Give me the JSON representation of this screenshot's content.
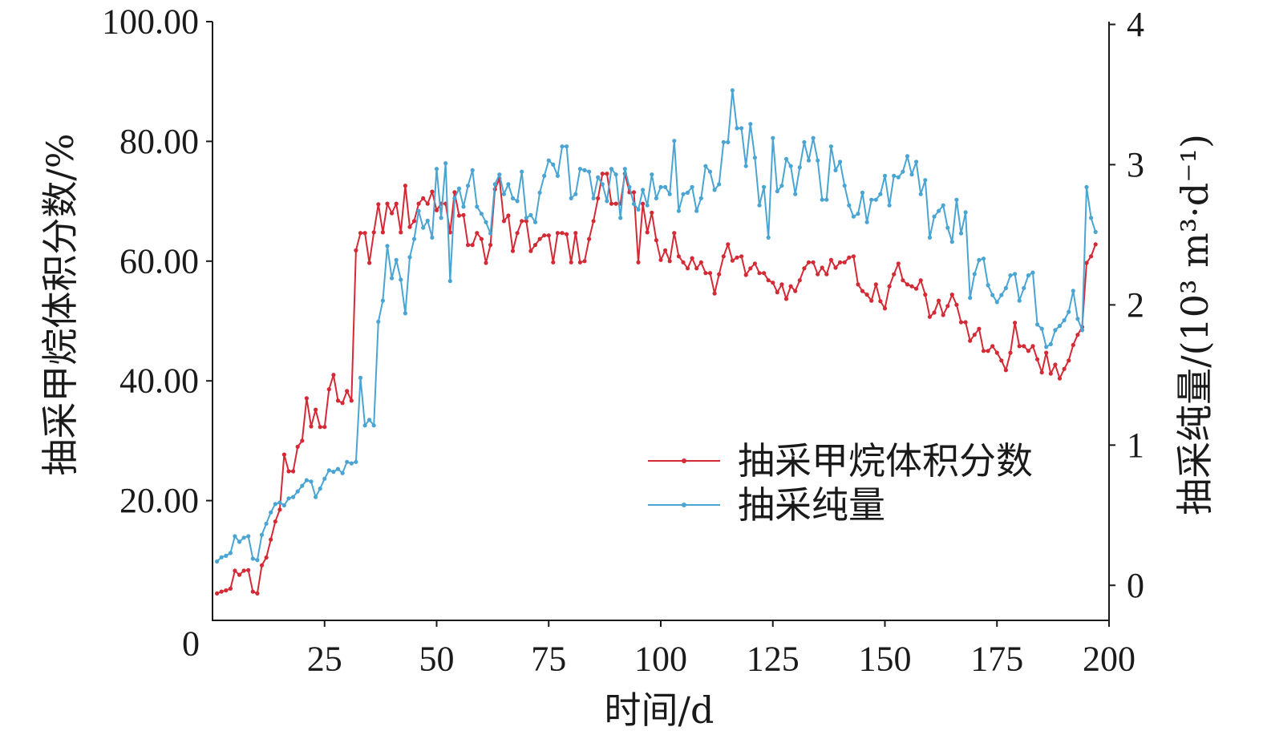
{
  "chart_data": {
    "type": "line",
    "xlabel": "时间/d",
    "ylabel": "抽采甲烷体积分数/%",
    "ylabel_right": "抽采纯量/(10³ m³·d⁻¹)",
    "xlim": [
      0,
      200
    ],
    "ylim": [
      0,
      100
    ],
    "ylim_right": [
      -0.25,
      4.02
    ],
    "x_ticks": [
      25,
      50,
      75,
      100,
      125,
      150,
      175,
      200
    ],
    "x_tick_labels": [
      "25",
      "50",
      "75",
      "100",
      "125",
      "150",
      "175",
      "200"
    ],
    "y_ticks": [
      20,
      40,
      60,
      80,
      100
    ],
    "y_tick_labels": [
      "20.00",
      "40.00",
      "60.00",
      "80.00",
      "100.00"
    ],
    "y_right_ticks": [
      0,
      1,
      2,
      3,
      4
    ],
    "y_right_tick_labels": [
      "0",
      "1",
      "2",
      "3",
      "4"
    ],
    "origin_label": "0",
    "grid": false,
    "legend": "lower-right",
    "x": [
      1,
      2,
      3,
      4,
      5,
      6,
      7,
      8,
      9,
      10,
      11,
      12,
      13,
      14,
      15,
      16,
      17,
      18,
      19,
      20,
      21,
      22,
      23,
      24,
      25,
      26,
      27,
      28,
      29,
      30,
      31,
      32,
      33,
      34,
      35,
      36,
      37,
      38,
      39,
      40,
      41,
      42,
      43,
      44,
      45,
      46,
      47,
      48,
      49,
      50,
      51,
      52,
      53,
      54,
      55,
      56,
      57,
      58,
      59,
      60,
      61,
      62,
      63,
      64,
      65,
      66,
      67,
      68,
      69,
      70,
      71,
      72,
      73,
      74,
      75,
      76,
      77,
      78,
      79,
      80,
      81,
      82,
      83,
      84,
      85,
      86,
      87,
      88,
      89,
      90,
      91,
      92,
      93,
      94,
      95,
      96,
      97,
      98,
      99,
      100,
      101,
      102,
      103,
      104,
      105,
      106,
      107,
      108,
      109,
      110,
      111,
      112,
      113,
      114,
      115,
      116,
      117,
      118,
      119,
      120,
      121,
      122,
      123,
      124,
      125,
      126,
      127,
      128,
      129,
      130,
      131,
      132,
      133,
      134,
      135,
      136,
      137,
      138,
      139,
      140,
      141,
      142,
      143,
      144,
      145,
      146,
      147,
      148,
      149,
      150,
      151,
      152,
      153,
      154,
      155,
      156,
      157,
      158,
      159,
      160,
      161,
      162,
      163,
      164,
      165,
      166,
      167,
      168,
      169,
      170,
      171,
      172,
      173,
      174,
      175,
      176,
      177,
      178,
      179,
      180,
      181,
      182,
      183,
      184,
      185,
      186,
      187,
      188,
      189,
      190,
      191,
      192,
      193,
      194,
      195,
      196,
      197
    ],
    "series": [
      {
        "name": "抽采甲烷体积分数",
        "axis": "left",
        "color": "#d42a36",
        "values": [
          4.5,
          4.8,
          5.0,
          5.3,
          8.3,
          7.6,
          8.3,
          8.4,
          4.8,
          4.5,
          9.2,
          10.5,
          13.5,
          16.5,
          18.5,
          27.7,
          24.9,
          24.9,
          29.0,
          30.0,
          37.1,
          32.4,
          35.2,
          32.3,
          32.3,
          38.6,
          41.0,
          36.7,
          36.3,
          38.3,
          36.7,
          61.8,
          64.7,
          64.7,
          59.7,
          64.8,
          69.5,
          64.8,
          69.6,
          68.0,
          69.6,
          64.8,
          72.6,
          65.7,
          66.7,
          69.6,
          70.5,
          69.6,
          71.6,
          68.5,
          69.6,
          69.6,
          64.8,
          71.5,
          67.6,
          67.7,
          62.7,
          62.7,
          64.7,
          63.7,
          59.7,
          62.7,
          72.0,
          73.8,
          66.7,
          67.6,
          61.7,
          64.7,
          66.7,
          66.7,
          61.7,
          62.7,
          63.7,
          64.3,
          64.3,
          59.8,
          64.7,
          64.7,
          64.5,
          59.8,
          64.7,
          59.8,
          60.0,
          63.7,
          66.7,
          70.5,
          74.6,
          74.6,
          69.6,
          69.6,
          69.6,
          74.6,
          71.5,
          71.5,
          59.8,
          69.6,
          64.8,
          68.1,
          63.5,
          60.2,
          61.8,
          60.0,
          64.7,
          60.8,
          59.8,
          58.8,
          60.5,
          58.8,
          59.8,
          58.0,
          58.0,
          54.6,
          57.8,
          60.8,
          62.8,
          60.1,
          60.6,
          60.8,
          57.7,
          58.8,
          59.6,
          58.0,
          58.0,
          56.8,
          56.4,
          54.8,
          56.1,
          53.7,
          55.8,
          55.0,
          56.8,
          58.8,
          59.8,
          59.8,
          57.8,
          58.9,
          57.8,
          60.2,
          58.9,
          59.8,
          59.8,
          60.6,
          60.8,
          56.1,
          55.0,
          54.4,
          53.4,
          56.1,
          53.3,
          52.1,
          55.8,
          57.8,
          59.6,
          56.8,
          56.1,
          55.8,
          55.4,
          56.8,
          54.4,
          50.7,
          51.4,
          53.4,
          51.0,
          52.5,
          54.4,
          52.7,
          49.8,
          49.8,
          46.7,
          47.7,
          48.7,
          45.0,
          45.0,
          45.8,
          44.7,
          43.4,
          41.8,
          44.7,
          49.7,
          45.8,
          45.8,
          45.0,
          45.8,
          43.6,
          41.4,
          44.7,
          41.2,
          42.7,
          40.4,
          42.0,
          43.4,
          46.0,
          47.7,
          49.0,
          59.7,
          60.8,
          62.8
        ]
      },
      {
        "name": "抽采纯量",
        "axis": "right",
        "color": "#4aa5d2",
        "values": [
          0.17,
          0.2,
          0.21,
          0.23,
          0.35,
          0.31,
          0.34,
          0.35,
          0.19,
          0.18,
          0.36,
          0.44,
          0.52,
          0.58,
          0.59,
          0.57,
          0.62,
          0.63,
          0.67,
          0.71,
          0.75,
          0.74,
          0.63,
          0.69,
          0.76,
          0.82,
          0.81,
          0.83,
          0.8,
          0.88,
          0.87,
          0.88,
          1.48,
          1.14,
          1.18,
          1.14,
          1.88,
          2.03,
          2.42,
          2.19,
          2.32,
          2.18,
          1.94,
          2.34,
          2.47,
          2.67,
          2.55,
          2.6,
          2.48,
          2.97,
          2.62,
          3.01,
          2.17,
          2.76,
          2.83,
          2.7,
          2.85,
          2.96,
          2.7,
          2.65,
          2.59,
          2.51,
          2.86,
          2.93,
          2.79,
          2.86,
          2.76,
          2.74,
          2.95,
          2.62,
          2.64,
          2.59,
          2.8,
          2.92,
          3.03,
          3.0,
          2.92,
          3.13,
          3.13,
          2.76,
          2.79,
          2.97,
          2.96,
          2.95,
          2.76,
          2.91,
          2.86,
          2.74,
          2.97,
          2.93,
          2.62,
          2.97,
          2.84,
          2.72,
          2.68,
          2.82,
          2.71,
          2.93,
          2.76,
          2.84,
          2.84,
          2.79,
          3.17,
          2.67,
          2.79,
          2.8,
          2.84,
          2.67,
          2.76,
          2.99,
          2.95,
          2.82,
          2.86,
          3.16,
          3.16,
          3.53,
          3.26,
          3.26,
          2.99,
          3.29,
          3.05,
          2.71,
          2.84,
          2.48,
          3.19,
          2.81,
          2.85,
          3.04,
          2.99,
          2.79,
          2.98,
          3.16,
          3.03,
          3.19,
          3.03,
          2.75,
          2.75,
          3.13,
          2.96,
          3.02,
          2.85,
          2.71,
          2.63,
          2.65,
          2.8,
          2.59,
          2.75,
          2.75,
          2.79,
          2.92,
          2.71,
          2.92,
          2.91,
          2.95,
          3.06,
          2.93,
          3.02,
          2.79,
          2.89,
          2.48,
          2.63,
          2.67,
          2.71,
          2.55,
          2.45,
          2.75,
          2.51,
          2.66,
          2.05,
          2.22,
          2.32,
          2.33,
          2.14,
          2.07,
          2.02,
          2.07,
          2.12,
          2.21,
          2.22,
          2.03,
          2.12,
          2.21,
          2.23,
          1.86,
          1.83,
          1.7,
          1.72,
          1.82,
          1.85,
          1.89,
          1.95,
          2.1,
          1.9,
          1.82,
          2.84,
          2.62,
          2.52
        ]
      }
    ]
  }
}
